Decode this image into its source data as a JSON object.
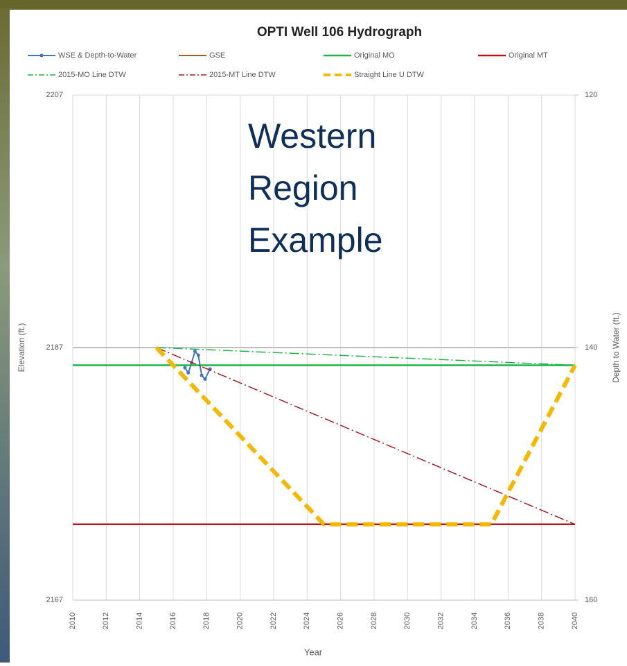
{
  "chart_data": {
    "type": "line",
    "title": "OPTI Well 106 Hydrograph",
    "annotation": [
      "Western",
      "Region",
      "Example"
    ],
    "x_label": "Year",
    "y_label": "Elevation (ft.)",
    "y2_label": "Depth to Water (ft.)",
    "xlim": [
      2010,
      2040
    ],
    "xticks": [
      2010,
      2012,
      2014,
      2016,
      2018,
      2020,
      2022,
      2024,
      2026,
      2028,
      2030,
      2032,
      2034,
      2036,
      2038,
      2040
    ],
    "ylim": [
      2167,
      2207
    ],
    "yticks": [
      2167,
      2187,
      2207
    ],
    "y2lim": [
      120,
      160
    ],
    "y2ticks": [
      120,
      140,
      160
    ],
    "y2_inverted": true,
    "grid": true,
    "series": [
      {
        "name": "WSE & Depth-to-Water",
        "color": "#4472c4",
        "style": "solid",
        "width": 2,
        "marker": true,
        "x": [
          2016.7,
          2016.9,
          2017.1,
          2017.3,
          2017.5,
          2017.7,
          2017.9,
          2018.2
        ],
        "values": [
          2185.4,
          2185.0,
          2185.8,
          2186.7,
          2186.4,
          2184.8,
          2184.5,
          2185.3
        ]
      },
      {
        "name": "GSE",
        "color": "#bdbdbd",
        "legend_color": "#9c5b2a",
        "style": "solid",
        "width": 2,
        "x": [
          2010,
          2040
        ],
        "values": [
          2187,
          2187
        ]
      },
      {
        "name": "Original MO",
        "color": "#1fb24a",
        "style": "solid",
        "width": 2.5,
        "x": [
          2010,
          2040
        ],
        "values": [
          2185.6,
          2185.6
        ]
      },
      {
        "name": "Original MT",
        "color": "#c0141c",
        "style": "solid",
        "width": 2.5,
        "x": [
          2010,
          2040
        ],
        "values": [
          2173,
          2173
        ]
      },
      {
        "name": "2015-MO Line DTW",
        "color": "#1fb24a",
        "style": "dashdot",
        "width": 1.5,
        "x": [
          2015,
          2040
        ],
        "values": [
          2187,
          2185.6
        ]
      },
      {
        "name": "2015-MT Line DTW",
        "color": "#a01c28",
        "style": "dashdot",
        "width": 1.5,
        "x": [
          2015,
          2040
        ],
        "values": [
          2187,
          2173
        ]
      },
      {
        "name": "Straight Line U DTW",
        "color": "#f5b800",
        "style": "dash",
        "width": 6,
        "x": [
          2015,
          2025,
          2035,
          2040
        ],
        "values": [
          2187,
          2173,
          2173,
          2185.6
        ]
      }
    ]
  }
}
